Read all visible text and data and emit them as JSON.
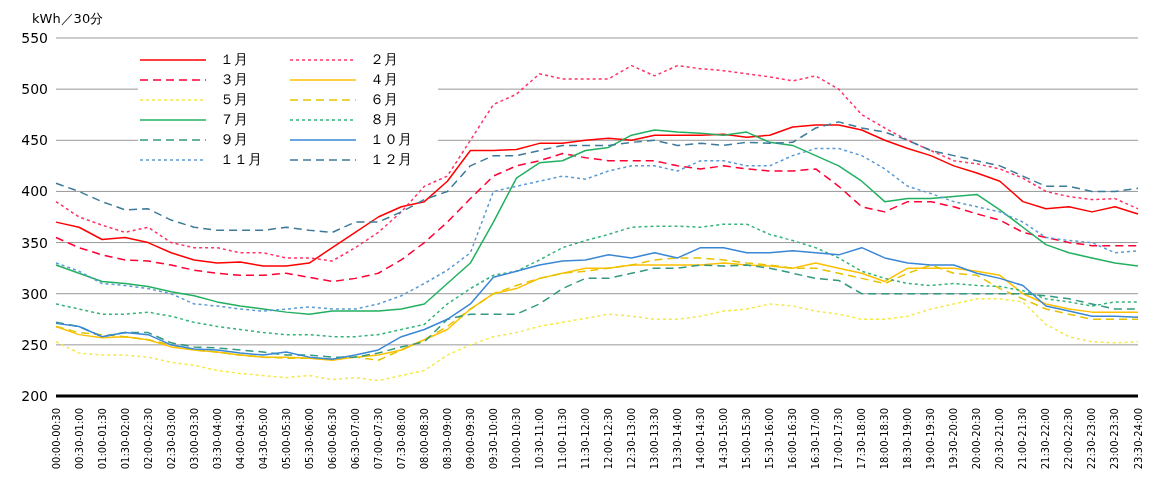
{
  "chart_data": {
    "type": "line",
    "ylabel": "kWh／30分",
    "categories": [
      "00:00-00:30",
      "00:30-01:00",
      "01:00-01:30",
      "01:30-02:00",
      "02:00-02:30",
      "02:30-03:00",
      "03:00-03:30",
      "03:30-04:00",
      "04:00-04:30",
      "04:30-05:00",
      "05:00-05:30",
      "05:30-06:00",
      "06:00-06:30",
      "06:30-07:00",
      "07:00-07:30",
      "07:30-08:00",
      "08:00-08:30",
      "08:30-09:00",
      "09:00-09:30",
      "09:30-10:00",
      "10:00-10:30",
      "10:30-11:00",
      "11:00-11:30",
      "11:30-12:00",
      "12:00-12:30",
      "12:30-13:00",
      "13:00-13:30",
      "13:30-14:00",
      "14:00-14:30",
      "14:30-15:00",
      "15:00-15:30",
      "15:30-16:00",
      "16:00-16:30",
      "16:30-17:00",
      "17:00-17:30",
      "17:30-18:00",
      "18:00-18:30",
      "18:30-19:00",
      "19:00-19:30",
      "19:30-20:00",
      "20:00-20:30",
      "20:30-21:00",
      "21:00-21:30",
      "21:30-22:00",
      "22:00-22:30",
      "22:30-23:00",
      "23:00-23:30",
      "23:30-24:00"
    ],
    "series": [
      {
        "name": "１月",
        "color": "#ff0000",
        "line_style": "solid",
        "values": [
          370,
          365,
          353,
          355,
          350,
          340,
          333,
          330,
          331,
          327,
          327,
          330,
          345,
          360,
          375,
          385,
          390,
          410,
          440,
          440,
          441,
          447,
          447,
          450,
          452,
          450,
          455,
          455,
          455,
          456,
          453,
          455,
          463,
          465,
          465,
          460,
          450,
          442,
          435,
          425,
          418,
          410,
          390,
          383,
          385,
          380,
          385,
          378
        ]
      },
      {
        "name": "２月",
        "color": "#ff3366",
        "line_style": "dotted",
        "values": [
          390,
          375,
          367,
          360,
          365,
          350,
          345,
          345,
          340,
          340,
          335,
          335,
          332,
          345,
          360,
          380,
          405,
          415,
          450,
          485,
          495,
          515,
          510,
          510,
          510,
          523,
          513,
          523,
          520,
          518,
          515,
          512,
          508,
          513,
          500,
          475,
          462,
          450,
          440,
          430,
          427,
          422,
          413,
          400,
          395,
          392,
          393,
          383
        ]
      },
      {
        "name": "３月",
        "color": "#ff0033",
        "line_style": "dashed",
        "values": [
          355,
          345,
          338,
          333,
          332,
          328,
          323,
          320,
          318,
          318,
          320,
          316,
          312,
          315,
          320,
          333,
          350,
          370,
          393,
          415,
          425,
          430,
          437,
          433,
          430,
          430,
          430,
          425,
          422,
          425,
          422,
          420,
          420,
          422,
          405,
          385,
          380,
          390,
          390,
          385,
          378,
          372,
          360,
          355,
          350,
          347,
          347,
          347
        ]
      },
      {
        "name": "４月",
        "color": "#ffc000",
        "line_style": "solid",
        "values": [
          268,
          260,
          257,
          258,
          255,
          248,
          245,
          243,
          240,
          238,
          238,
          237,
          235,
          238,
          240,
          245,
          255,
          265,
          285,
          300,
          305,
          315,
          320,
          325,
          325,
          328,
          328,
          328,
          328,
          330,
          328,
          327,
          325,
          330,
          325,
          320,
          312,
          325,
          325,
          325,
          322,
          318,
          300,
          290,
          285,
          282,
          282,
          282
        ]
      },
      {
        "name": "５月",
        "color": "#f5e94a",
        "line_style": "dotted",
        "values": [
          253,
          242,
          240,
          240,
          238,
          233,
          230,
          225,
          222,
          220,
          218,
          220,
          216,
          218,
          215,
          220,
          225,
          240,
          250,
          258,
          262,
          268,
          272,
          276,
          280,
          278,
          275,
          275,
          278,
          283,
          285,
          290,
          288,
          283,
          280,
          275,
          275,
          278,
          285,
          290,
          295,
          295,
          292,
          270,
          258,
          253,
          252,
          253
        ]
      },
      {
        "name": "６月",
        "color": "#e6c300",
        "line_style": "dashed",
        "values": [
          268,
          262,
          260,
          258,
          255,
          250,
          245,
          243,
          240,
          238,
          237,
          237,
          236,
          238,
          235,
          245,
          255,
          268,
          285,
          300,
          308,
          315,
          320,
          322,
          325,
          328,
          333,
          335,
          335,
          333,
          330,
          328,
          325,
          325,
          320,
          315,
          310,
          320,
          328,
          320,
          318,
          305,
          295,
          285,
          280,
          275,
          275,
          275
        ]
      },
      {
        "name": "７月",
        "color": "#22b060",
        "line_style": "solid",
        "values": [
          328,
          320,
          312,
          310,
          307,
          302,
          298,
          292,
          288,
          285,
          282,
          280,
          283,
          283,
          283,
          285,
          290,
          310,
          330,
          370,
          413,
          428,
          430,
          440,
          443,
          455,
          460,
          458,
          457,
          455,
          458,
          448,
          445,
          435,
          425,
          410,
          390,
          393,
          393,
          395,
          397,
          382,
          365,
          348,
          340,
          335,
          330,
          327
        ]
      },
      {
        "name": "８月",
        "color": "#33b37a",
        "line_style": "dotted",
        "values": [
          290,
          285,
          280,
          280,
          282,
          278,
          272,
          268,
          265,
          262,
          260,
          260,
          258,
          258,
          260,
          265,
          270,
          290,
          305,
          318,
          322,
          333,
          345,
          352,
          358,
          365,
          366,
          366,
          365,
          368,
          368,
          358,
          352,
          345,
          335,
          322,
          315,
          310,
          308,
          310,
          308,
          307,
          303,
          295,
          292,
          288,
          292,
          292
        ]
      },
      {
        "name": "９月",
        "color": "#339980",
        "line_style": "dashed",
        "values": [
          272,
          268,
          258,
          262,
          262,
          252,
          248,
          247,
          245,
          243,
          240,
          240,
          238,
          238,
          242,
          248,
          253,
          275,
          280,
          280,
          280,
          290,
          305,
          315,
          315,
          320,
          325,
          325,
          328,
          327,
          328,
          325,
          320,
          315,
          313,
          300,
          300,
          300,
          300,
          300,
          300,
          300,
          300,
          298,
          295,
          290,
          285,
          285
        ]
      },
      {
        "name": "１０月",
        "color": "#3a87d6",
        "line_style": "solid",
        "values": [
          271,
          268,
          258,
          262,
          260,
          250,
          246,
          245,
          242,
          240,
          243,
          238,
          236,
          240,
          245,
          258,
          265,
          275,
          290,
          316,
          322,
          328,
          332,
          333,
          338,
          335,
          340,
          335,
          345,
          345,
          340,
          340,
          342,
          340,
          338,
          345,
          335,
          330,
          328,
          328,
          320,
          315,
          308,
          288,
          283,
          278,
          278,
          277
        ]
      },
      {
        "name": "１１月",
        "color": "#5b9bd5",
        "line_style": "dotted",
        "values": [
          330,
          322,
          310,
          308,
          305,
          300,
          290,
          288,
          285,
          283,
          285,
          287,
          285,
          285,
          290,
          298,
          310,
          323,
          340,
          400,
          405,
          410,
          415,
          412,
          420,
          425,
          425,
          420,
          430,
          430,
          425,
          425,
          435,
          442,
          442,
          435,
          422,
          405,
          398,
          390,
          385,
          380,
          370,
          355,
          352,
          350,
          340,
          342
        ]
      },
      {
        "name": "１２月",
        "color": "#3d7a99",
        "line_style": "dashed",
        "values": [
          408,
          400,
          390,
          382,
          383,
          372,
          365,
          362,
          362,
          362,
          365,
          362,
          360,
          370,
          370,
          380,
          392,
          400,
          425,
          435,
          435,
          440,
          445,
          445,
          445,
          448,
          450,
          445,
          447,
          445,
          448,
          447,
          448,
          462,
          468,
          462,
          458,
          450,
          440,
          435,
          430,
          425,
          415,
          405,
          405,
          400,
          400,
          403
        ]
      }
    ],
    "ylim": [
      200,
      550
    ],
    "yticks": [
      200,
      250,
      300,
      350,
      400,
      450,
      500,
      550
    ],
    "grid": "y",
    "legend": "top left",
    "marker": "none"
  }
}
